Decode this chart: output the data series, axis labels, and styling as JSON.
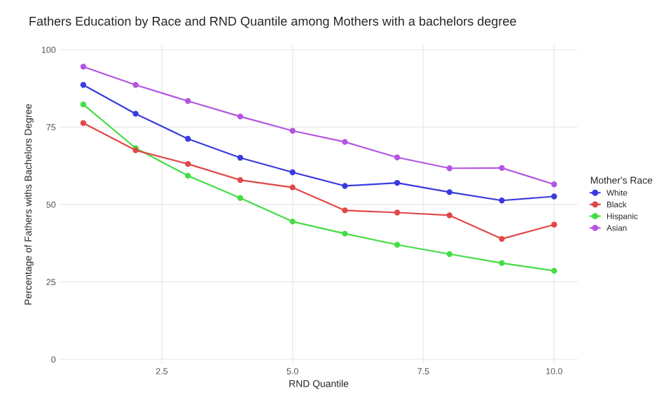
{
  "chart_data": {
    "type": "line",
    "title": "Fathers Education by Race and RND Quantile among Mothers with a bachelors degree",
    "xlabel": "RND Quantile",
    "ylabel": "Percentage of Fathers withs Bachelors Degree",
    "legend_title": "Mother's Race",
    "x": [
      1,
      2,
      3,
      4,
      5,
      6,
      7,
      8,
      9,
      10
    ],
    "series": [
      {
        "name": "White",
        "color": "#3a3ae0",
        "values": [
          88.6,
          79.3,
          71.2,
          65.1,
          60.4,
          56.0,
          57.0,
          54.0,
          51.3,
          52.6
        ]
      },
      {
        "name": "Black",
        "color": "#e04848",
        "values": [
          76.3,
          67.5,
          63.1,
          57.9,
          55.5,
          48.1,
          47.4,
          46.5,
          38.9,
          43.5
        ]
      },
      {
        "name": "Hispanic",
        "color": "#44dd44",
        "values": [
          82.3,
          68.2,
          59.3,
          52.1,
          44.5,
          40.6,
          37.0,
          34.0,
          31.1,
          28.6
        ]
      },
      {
        "name": "Asian",
        "color": "#b455e0",
        "values": [
          94.5,
          88.6,
          83.4,
          78.4,
          73.8,
          70.2,
          65.2,
          61.7,
          61.8,
          56.5
        ]
      }
    ],
    "xlim": [
      0.55,
      10.45
    ],
    "ylim": [
      -1.5,
      101.5
    ],
    "xticks": [
      {
        "value": 2.5,
        "label": "2.5"
      },
      {
        "value": 5,
        "label": "5.0"
      },
      {
        "value": 7.5,
        "label": "7.5"
      },
      {
        "value": 10,
        "label": "10.0"
      }
    ],
    "yticks": [
      0,
      25,
      50,
      75,
      100
    ],
    "grid": true,
    "legend": "right",
    "marker": "circle",
    "line_style": "solid"
  }
}
